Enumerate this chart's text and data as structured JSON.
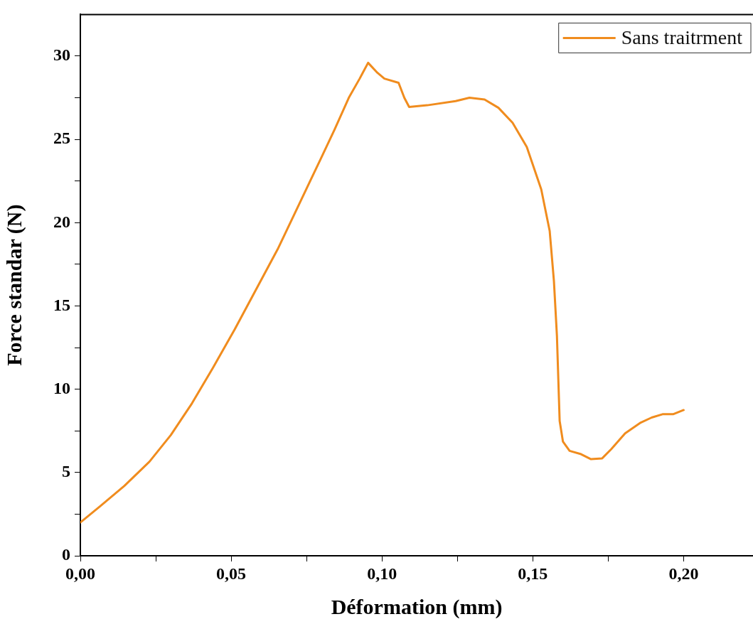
{
  "chart_data": {
    "type": "line",
    "xlabel": "Déformation (mm)",
    "ylabel": "Force standar (N)",
    "xlim": [
      0,
      0.223
    ],
    "ylim": [
      0,
      32.5
    ],
    "xticks": [
      {
        "value": 0,
        "label": "0,00"
      },
      {
        "value": 0.025,
        "label": null
      },
      {
        "value": 0.05,
        "label": "0,05"
      },
      {
        "value": 0.075,
        "label": null
      },
      {
        "value": 0.1,
        "label": "0,10"
      },
      {
        "value": 0.125,
        "label": null
      },
      {
        "value": 0.15,
        "label": "0,15"
      },
      {
        "value": 0.175,
        "label": null
      },
      {
        "value": 0.2,
        "label": "0,20"
      }
    ],
    "yticks": [
      0,
      {
        "value": 2.5,
        "label": null
      },
      5,
      {
        "value": 7.5,
        "label": null
      },
      10,
      {
        "value": 12.5,
        "label": null
      },
      15,
      {
        "value": 17.5,
        "label": null
      },
      20,
      {
        "value": 22.5,
        "label": null
      },
      25,
      {
        "value": 27.5,
        "label": null
      },
      30
    ],
    "grid": false,
    "legend": "top right",
    "marker": "none",
    "line_style": "solid",
    "series": [
      {
        "name": "Sans traitrment",
        "color": "#f08c1e",
        "x": [
          0,
          0.0064,
          0.0146,
          0.0229,
          0.03,
          0.037,
          0.044,
          0.0512,
          0.0583,
          0.0654,
          0.0725,
          0.0796,
          0.0843,
          0.089,
          0.0926,
          0.0954,
          0.0985,
          0.1008,
          0.1055,
          0.1074,
          0.109,
          0.115,
          0.1244,
          0.129,
          0.134,
          0.1386,
          0.1433,
          0.148,
          0.1528,
          0.1556,
          0.157,
          0.158,
          0.1589,
          0.16,
          0.1622,
          0.166,
          0.1693,
          0.173,
          0.176,
          0.1806,
          0.1858,
          0.1894,
          0.193,
          0.1965,
          0.2
        ],
        "values": [
          2.0,
          2.95,
          4.2,
          5.65,
          7.25,
          9.15,
          11.3,
          13.6,
          16.0,
          18.4,
          21.1,
          23.8,
          25.6,
          27.5,
          28.65,
          29.6,
          29.0,
          28.65,
          28.4,
          27.5,
          26.95,
          27.05,
          27.3,
          27.5,
          27.4,
          26.9,
          26.0,
          24.55,
          22.0,
          19.5,
          16.5,
          13.2,
          8.1,
          6.85,
          6.3,
          6.1,
          5.8,
          5.85,
          6.4,
          7.35,
          8.0,
          8.3,
          8.5,
          8.5,
          8.75
        ]
      }
    ]
  }
}
